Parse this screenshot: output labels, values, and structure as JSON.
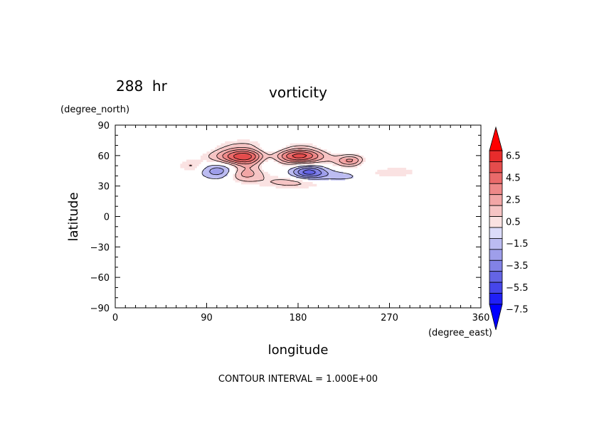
{
  "chart_data": {
    "type": "heatmap",
    "title": "vorticity",
    "time_label": "288  hr",
    "xlabel": "longitude",
    "ylabel": "latitude",
    "x_unit": "(degree_east)",
    "y_unit": "(degree_north)",
    "xlim": [
      0,
      360
    ],
    "ylim": [
      -90,
      90
    ],
    "x_ticks": [
      0,
      90,
      180,
      270,
      360
    ],
    "y_ticks": [
      90,
      60,
      30,
      0,
      -30,
      -60,
      -90
    ],
    "x_tick_labels": [
      "0",
      "90",
      "180",
      "270",
      "360"
    ],
    "y_tick_labels": [
      "90",
      "60",
      "30",
      "0",
      "−30",
      "−60",
      "−90"
    ],
    "colorbar": {
      "levels": [
        -8,
        -7,
        -6,
        -5,
        -4,
        -3,
        -2,
        -1,
        0,
        1,
        2,
        3,
        4,
        5,
        6,
        7,
        8
      ],
      "labels": [
        "6.5",
        "4.5",
        "2.5",
        "0.5",
        "−1.5",
        "−3.5",
        "−5.5",
        "−7.5"
      ],
      "label_values": [
        6.5,
        4.5,
        2.5,
        0.5,
        -1.5,
        -3.5,
        -5.5,
        -7.5
      ],
      "extend": "both",
      "colors": [
        "#0000ff",
        "#2020f6",
        "#4646ea",
        "#6464e4",
        "#8282e6",
        "#9e9eea",
        "#bcbcf2",
        "#dcdcfa",
        "#fae2e2",
        "#f6c4c4",
        "#f2a6a6",
        "#ee8888",
        "#ea6a6a",
        "#e44c4c",
        "#e82c2c",
        "#ff0000"
      ]
    },
    "features": [
      {
        "lon": 128,
        "lat": 60,
        "sigma_lon": 20,
        "sigma_lat": 7,
        "value": 6.5
      },
      {
        "lon": 182,
        "lat": 61,
        "sigma_lon": 17,
        "sigma_lat": 6,
        "value": 6.0
      },
      {
        "lon": 232,
        "lat": 55,
        "sigma_lon": 10,
        "sigma_lat": 4,
        "value": 3.5
      },
      {
        "lon": 125,
        "lat": 42,
        "sigma_lon": 14,
        "sigma_lat": 5,
        "value": 3.0
      },
      {
        "lon": 175,
        "lat": 34,
        "sigma_lon": 22,
        "sigma_lat": 4,
        "value": 1.5
      },
      {
        "lon": 76,
        "lat": 50,
        "sigma_lon": 9,
        "sigma_lat": 4,
        "value": 1.2
      },
      {
        "lon": 266,
        "lat": 44,
        "sigma_lon": 22,
        "sigma_lat": 4,
        "value": 1.0
      },
      {
        "lon": 150,
        "lat": 57,
        "sigma_lon": 10,
        "sigma_lat": 7,
        "value": -3.0
      },
      {
        "lon": 105,
        "lat": 45,
        "sigma_lon": 14,
        "sigma_lat": 6,
        "value": -3.5
      },
      {
        "lon": 190,
        "lat": 44,
        "sigma_lon": 12,
        "sigma_lat": 5,
        "value": -4.5
      },
      {
        "lon": 160,
        "lat": 66,
        "sigma_lon": 45,
        "sigma_lat": 4,
        "value": -2.0
      },
      {
        "lon": 222,
        "lat": 40,
        "sigma_lon": 18,
        "sigma_lat": 4,
        "value": -1.5
      },
      {
        "lon": 250,
        "lat": 52,
        "sigma_lon": 12,
        "sigma_lat": 5,
        "value": -1.2
      }
    ]
  },
  "footer": {
    "contour_interval": "CONTOUR INTERVAL = 1.000E+00"
  }
}
